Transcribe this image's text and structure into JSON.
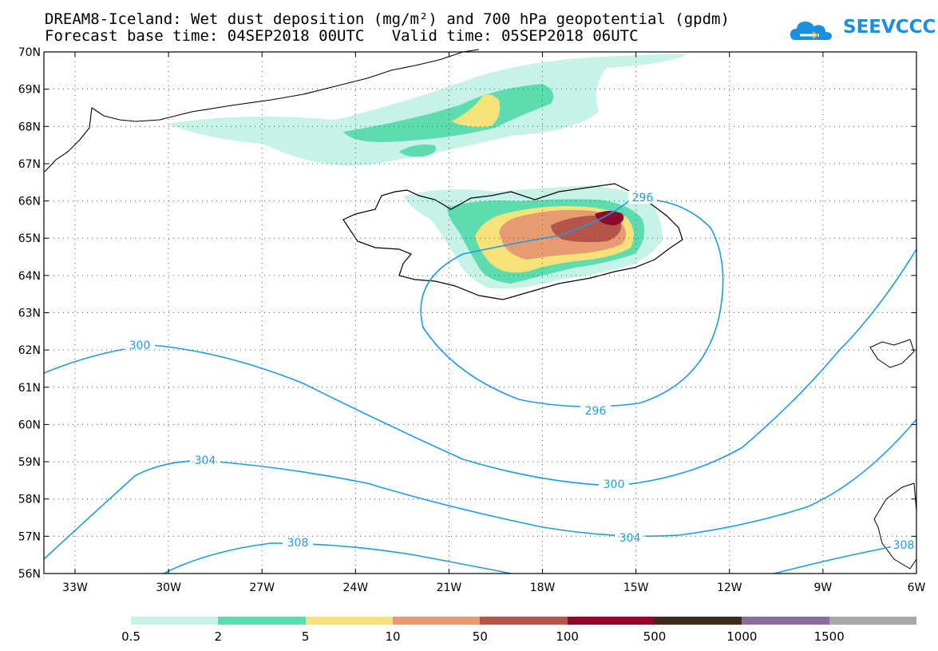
{
  "header": {
    "title_line1": "DREAM8-Iceland: Wet dust deposition (mg/m²) and 700 hPa geopotential (gpdm)",
    "base_time_label": "Forecast base time: 04SEP2018 00UTC",
    "valid_time_label": "Valid time: 05SEP2018 06UTC",
    "logo_text": "SEEVCCC"
  },
  "map": {
    "lat_labels": [
      "70N",
      "69N",
      "68N",
      "67N",
      "66N",
      "65N",
      "64N",
      "63N",
      "62N",
      "61N",
      "60N",
      "59N",
      "58N",
      "57N",
      "56N"
    ],
    "lon_labels": [
      "33W",
      "30W",
      "27W",
      "24W",
      "21W",
      "18W",
      "15W",
      "12W",
      "9W",
      "6W"
    ],
    "contour_labels": [
      "300",
      "304",
      "308",
      "296",
      "296",
      "300",
      "304",
      "308"
    ]
  },
  "colorbar": {
    "tick_labels": [
      "0.5",
      "2",
      "5",
      "10",
      "50",
      "100",
      "500",
      "1000",
      "1500"
    ],
    "colors": [
      "#c6f2e8",
      "#5ddcb0",
      "#f5e37a",
      "#e89a72",
      "#b5554a",
      "#8c0a2c",
      "#3d2a18",
      "#8c6a9a",
      "#a8a8a8"
    ]
  },
  "legend_colors": {
    "contour": "#1e9be6",
    "coast": "#000000"
  }
}
